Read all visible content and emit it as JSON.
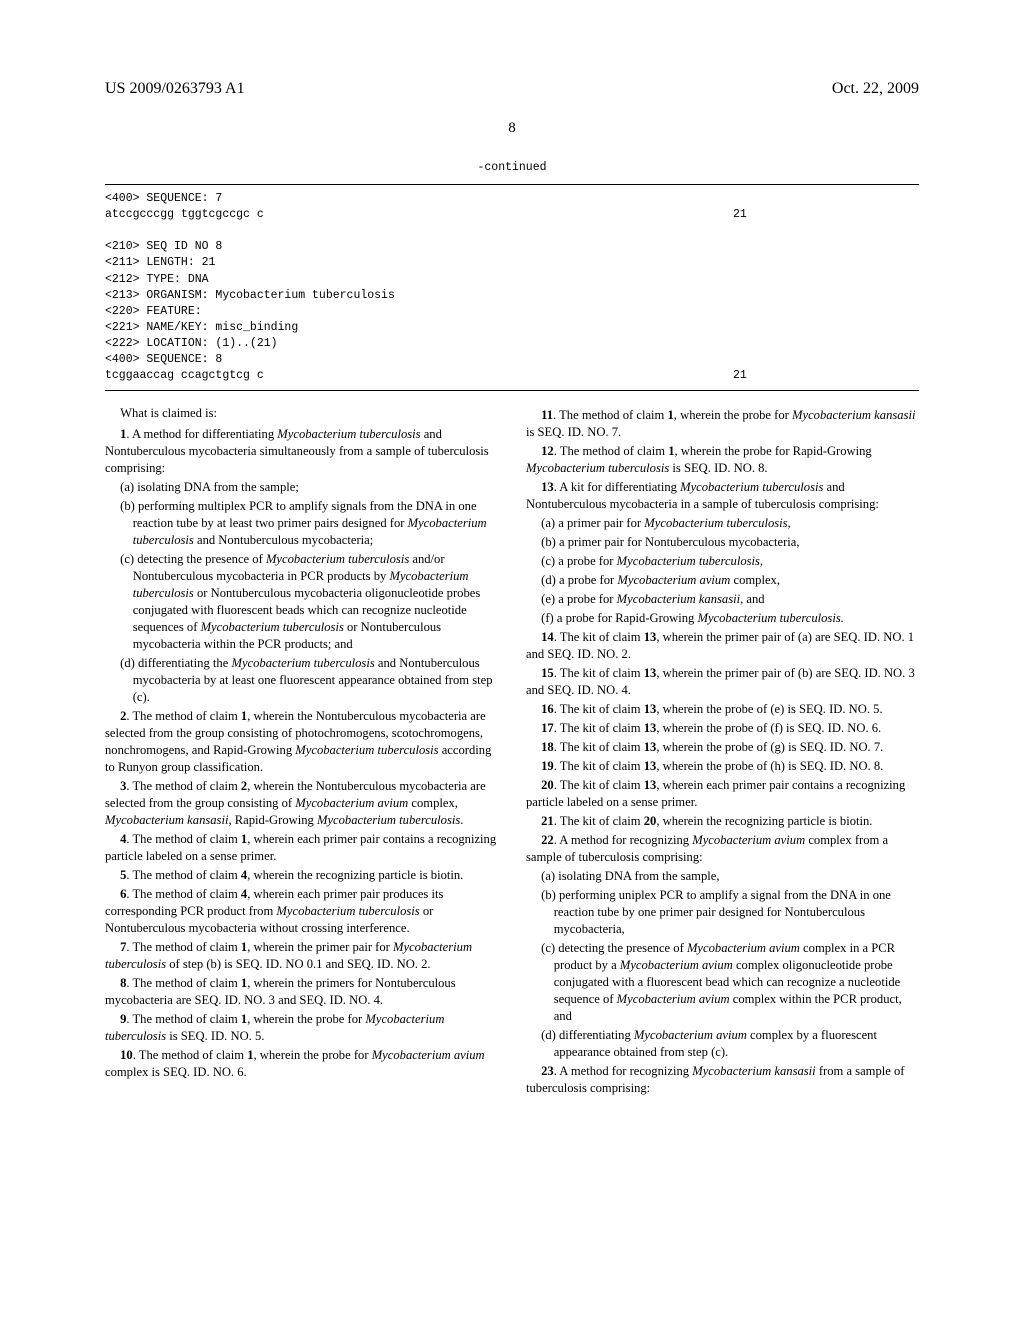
{
  "header": {
    "left": "US 2009/0263793 A1",
    "right": "Oct. 22, 2009",
    "page": "8"
  },
  "sequence": {
    "continued": "-continued",
    "block1": [
      "<400> SEQUENCE: 7",
      "",
      "atccgcccgg tggtcgccgc c                                                                    21"
    ],
    "block2": [
      "<210> SEQ ID NO 8",
      "<211> LENGTH: 21",
      "<212> TYPE: DNA",
      "<213> ORGANISM: Mycobacterium tuberculosis",
      "<220> FEATURE:",
      "<221> NAME/KEY: misc_binding",
      "<222> LOCATION: (1)..(21)",
      "",
      "<400> SEQUENCE: 8",
      "",
      "tcggaaccag ccagctgtcg c                                                                    21"
    ]
  },
  "claims": {
    "intro": "What is claimed is:",
    "c1_lead": "1. A method for differentiating Mycobacterium tuberculosis and Nontuberculous mycobacteria simultaneously from a sample of tuberculosis comprising:",
    "c1a": "(a) isolating DNA from the sample;",
    "c1b": "(b) performing multiplex PCR to amplify signals from the DNA in one reaction tube by at least two primer pairs designed for Mycobacterium tuberculosis and Nontuberculous mycobacteria;",
    "c1c": "(c) detecting the presence of Mycobacterium tuberculosis and/or Nontuberculous mycobacteria in PCR products by Mycobacterium tuberculosis or Nontuberculous mycobacteria oligonucleotide probes conjugated with fluorescent beads which can recognize nucleotide sequences of Mycobacterium tuberculosis or Nontuberculous mycobacteria within the PCR products; and",
    "c1d": "(d) differentiating the Mycobacterium tuberculosis and Nontuberculous mycobacteria by at least one fluorescent appearance obtained from step (c).",
    "c2": "2. The method of claim 1, wherein the Nontuberculous mycobacteria are selected from the group consisting of photochromogens, scotochromogens, nonchromogens, and Rapid-Growing Mycobacterium tuberculosis according to Runyon group classification.",
    "c3": "3. The method of claim 2, wherein the Nontuberculous mycobacteria are selected from the group consisting of Mycobacterium avium complex, Mycobacterium kansasii, Rapid-Growing Mycobacterium tuberculosis.",
    "c4": "4. The method of claim 1, wherein each primer pair contains a recognizing particle labeled on a sense primer.",
    "c5": "5. The method of claim 4, wherein the recognizing particle is biotin.",
    "c6": "6. The method of claim 4, wherein each primer pair produces its corresponding PCR product from Mycobacterium tuberculosis or Nontuberculous mycobacteria without crossing interference.",
    "c7": "7. The method of claim 1, wherein the primer pair for Mycobacterium tuberculosis of step (b) is SEQ. ID. NO 0.1 and SEQ. ID. NO. 2.",
    "c8": "8. The method of claim 1, wherein the primers for Nontuberculous mycobacteria are SEQ. ID. NO. 3 and SEQ. ID. NO. 4.",
    "c9": "9. The method of claim 1, wherein the probe for Mycobacterium tuberculosis is SEQ. ID. NO. 5.",
    "c10": "10. The method of claim 1, wherein the probe for Mycobacterium avium complex is SEQ. ID. NO. 6.",
    "c11": "11. The method of claim 1, wherein the probe for Mycobacterium kansasii is SEQ. ID. NO. 7.",
    "c12": "12. The method of claim 1, wherein the probe for Rapid-Growing Mycobacterium tuberculosis is SEQ. ID. NO. 8.",
    "c13_lead": "13. A kit for differentiating Mycobacterium tuberculosis and Nontuberculous mycobacteria in a sample of tuberculosis comprising:",
    "c13a": "(a) a primer pair for Mycobacterium tuberculosis,",
    "c13b": "(b) a primer pair for Nontuberculous mycobacteria,",
    "c13c": "(c) a probe for Mycobacterium tuberculosis,",
    "c13d": "(d) a probe for Mycobacterium avium complex,",
    "c13e": "(e) a probe for Mycobacterium kansasii, and",
    "c13f": "(f) a probe for Rapid-Growing Mycobacterium tuberculosis.",
    "c14": "14. The kit of claim 13, wherein the primer pair of (a) are SEQ. ID. NO. 1 and SEQ. ID. NO. 2.",
    "c15": "15. The kit of claim 13, wherein the primer pair of (b) are SEQ. ID. NO. 3 and SEQ. ID. NO. 4.",
    "c16": "16. The kit of claim 13, wherein the probe of (e) is SEQ. ID. NO. 5.",
    "c17": "17. The kit of claim 13, wherein the probe of (f) is SEQ. ID. NO. 6.",
    "c18": "18. The kit of claim 13, wherein the probe of (g) is SEQ. ID. NO. 7.",
    "c19": "19. The kit of claim 13, wherein the probe of (h) is SEQ. ID. NO. 8.",
    "c20": "20. The kit of claim 13, wherein each primer pair contains a recognizing particle labeled on a sense primer.",
    "c21": "21. The kit of claim 20, wherein the recognizing particle is biotin.",
    "c22_lead": "22. A method for recognizing Mycobacterium avium complex from a sample of tuberculosis comprising:",
    "c22a": "(a) isolating DNA from the sample,",
    "c22b": "(b) performing uniplex PCR to amplify a signal from the DNA in one reaction tube by one primer pair designed for Nontuberculous mycobacteria,",
    "c22c": "(c) detecting the presence of Mycobacterium avium complex in a PCR product by a Mycobacterium avium complex oligonucleotide probe conjugated with a fluorescent bead which can recognize a nucleotide sequence of Mycobacterium avium complex within the PCR product, and",
    "c22d": "(d) differentiating Mycobacterium avium complex by a fluorescent appearance obtained from step (c).",
    "c23": "23. A method for recognizing Mycobacterium kansasii from a sample of tuberculosis comprising:"
  }
}
